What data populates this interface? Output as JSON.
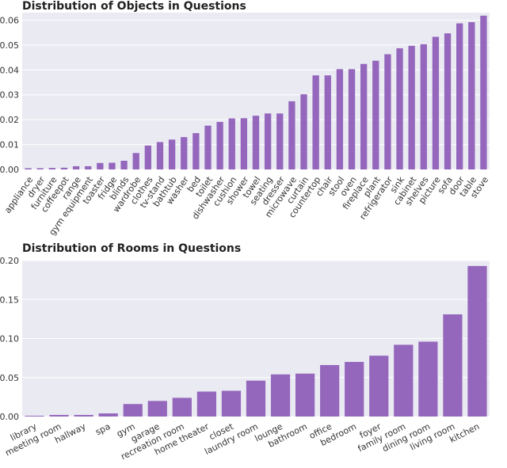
{
  "colors": {
    "bar": "#9467bd",
    "plot_bg": "#eaeaf2",
    "grid": "#ffffff"
  },
  "chart_data": [
    {
      "type": "bar",
      "title": "Distribution of Objects in Questions",
      "xlabel": "",
      "ylabel": "",
      "ylim": [
        0,
        0.063
      ],
      "yticks": [
        "0.00",
        "0.01",
        "0.02",
        "0.03",
        "0.04",
        "0.05",
        "0.06"
      ],
      "categories": [
        "appliance",
        "dryer",
        "furniture",
        "coffeepot",
        "range",
        "gym equipment",
        "toaster",
        "fridge",
        "blinds",
        "wardrobe",
        "clothes",
        "tv-stand",
        "bathtub",
        "washer",
        "bed",
        "toilet",
        "dishwasher",
        "cushion",
        "shower",
        "towel",
        "seating",
        "dresser",
        "microwave",
        "curtain",
        "countertop",
        "chair",
        "stool",
        "oven",
        "fireplace",
        "plant",
        "refrigerator",
        "sink",
        "cabinet",
        "shelves",
        "picture",
        "sofa",
        "door",
        "table",
        "stove"
      ],
      "values": [
        0.0005,
        0.0005,
        0.0006,
        0.0007,
        0.0013,
        0.0013,
        0.0026,
        0.0027,
        0.0035,
        0.0066,
        0.0096,
        0.011,
        0.012,
        0.013,
        0.0146,
        0.0176,
        0.0191,
        0.0205,
        0.0206,
        0.0216,
        0.0225,
        0.0225,
        0.0274,
        0.0302,
        0.0378,
        0.0378,
        0.0403,
        0.0403,
        0.0424,
        0.0437,
        0.0463,
        0.0487,
        0.0497,
        0.0503,
        0.0533,
        0.0547,
        0.0587,
        0.0592,
        0.0618
      ]
    },
    {
      "type": "bar",
      "title": "Distribution of Rooms in Questions",
      "xlabel": "",
      "ylabel": "",
      "ylim": [
        0,
        0.2
      ],
      "yticks": [
        "0.00",
        "0.05",
        "0.10",
        "0.15",
        "0.20"
      ],
      "categories": [
        "library",
        "meeting room",
        "hallway",
        "spa",
        "gym",
        "garage",
        "recreation room",
        "home theater",
        "closet",
        "laundry room",
        "lounge",
        "bathroom",
        "office",
        "bedroom",
        "foyer",
        "family room",
        "dining room",
        "living room",
        "kitchen"
      ],
      "values": [
        0.001,
        0.002,
        0.002,
        0.004,
        0.016,
        0.02,
        0.024,
        0.032,
        0.033,
        0.046,
        0.054,
        0.055,
        0.066,
        0.07,
        0.078,
        0.092,
        0.096,
        0.131,
        0.193
      ]
    }
  ]
}
